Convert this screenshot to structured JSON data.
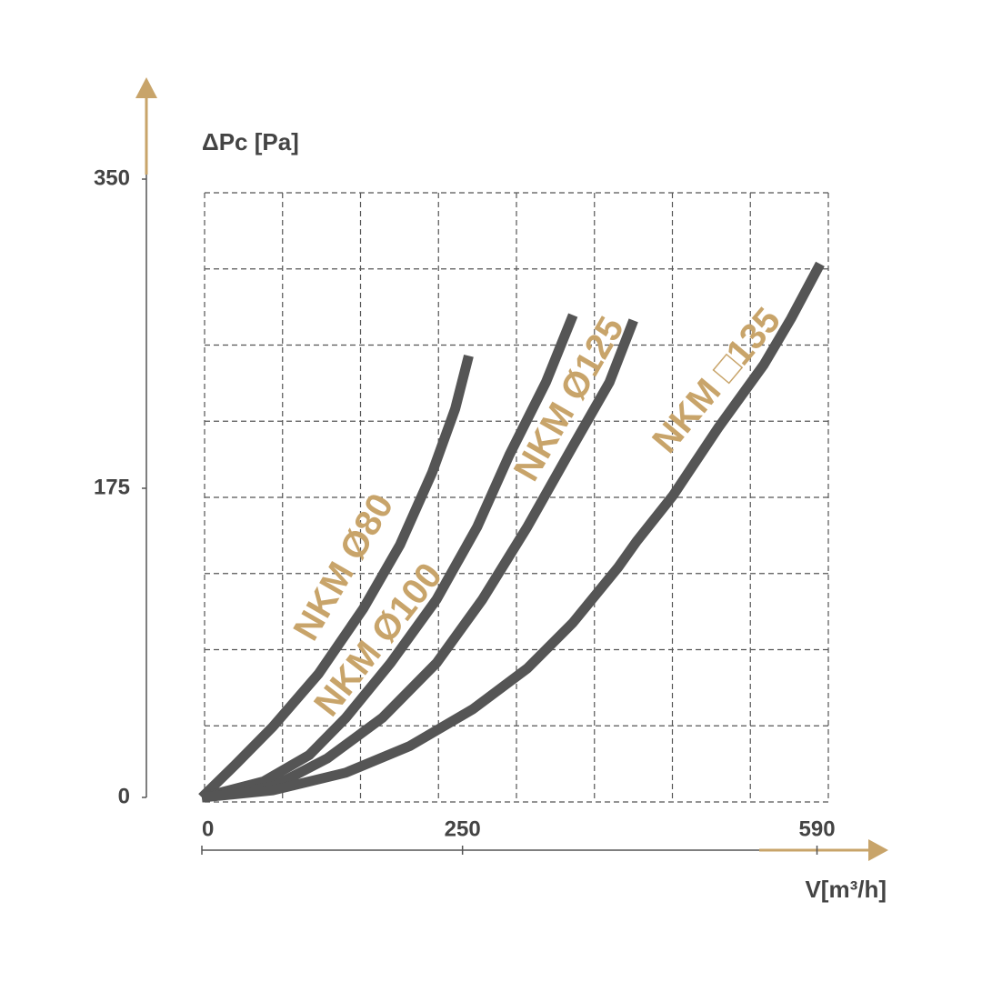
{
  "chart_data": {
    "type": "line",
    "y_label": "ΔPc [Pa]",
    "x_label": "V[m³/h]",
    "xlim": [
      0,
      600
    ],
    "ylim": [
      0,
      350
    ],
    "xticks": [
      0,
      250,
      590
    ],
    "yticks": [
      0,
      175,
      350
    ],
    "line_color": "#555555",
    "label_color": "#c8a46a",
    "series": [
      {
        "name": "NKM Ø80",
        "x": [
          0,
          33,
          68,
          112,
          155,
          190,
          221,
          243,
          256
        ],
        "values": [
          0,
          19,
          40,
          70,
          107,
          143,
          184,
          220,
          250
        ]
      },
      {
        "name": "NKM Ø100",
        "x": [
          0,
          59,
          103,
          138,
          181,
          225,
          264,
          295,
          330,
          356
        ],
        "values": [
          0,
          9,
          24,
          45,
          76,
          112,
          153,
          194,
          235,
          273
        ]
      },
      {
        "name": "NKM Ø125",
        "x": [
          0,
          68,
          120,
          173,
          225,
          269,
          312,
          356,
          391,
          414
        ],
        "values": [
          0,
          6,
          22,
          45,
          76,
          112,
          153,
          199,
          235,
          270
        ]
      },
      {
        "name": "NKM □135",
        "x": [
          0,
          68,
          138,
          199,
          260,
          312,
          356,
          399,
          417,
          452,
          495,
          539,
          565,
          593
        ],
        "values": [
          0,
          4,
          14,
          29,
          50,
          73,
          99,
          130,
          145,
          171,
          209,
          245,
          271,
          302
        ]
      }
    ]
  }
}
